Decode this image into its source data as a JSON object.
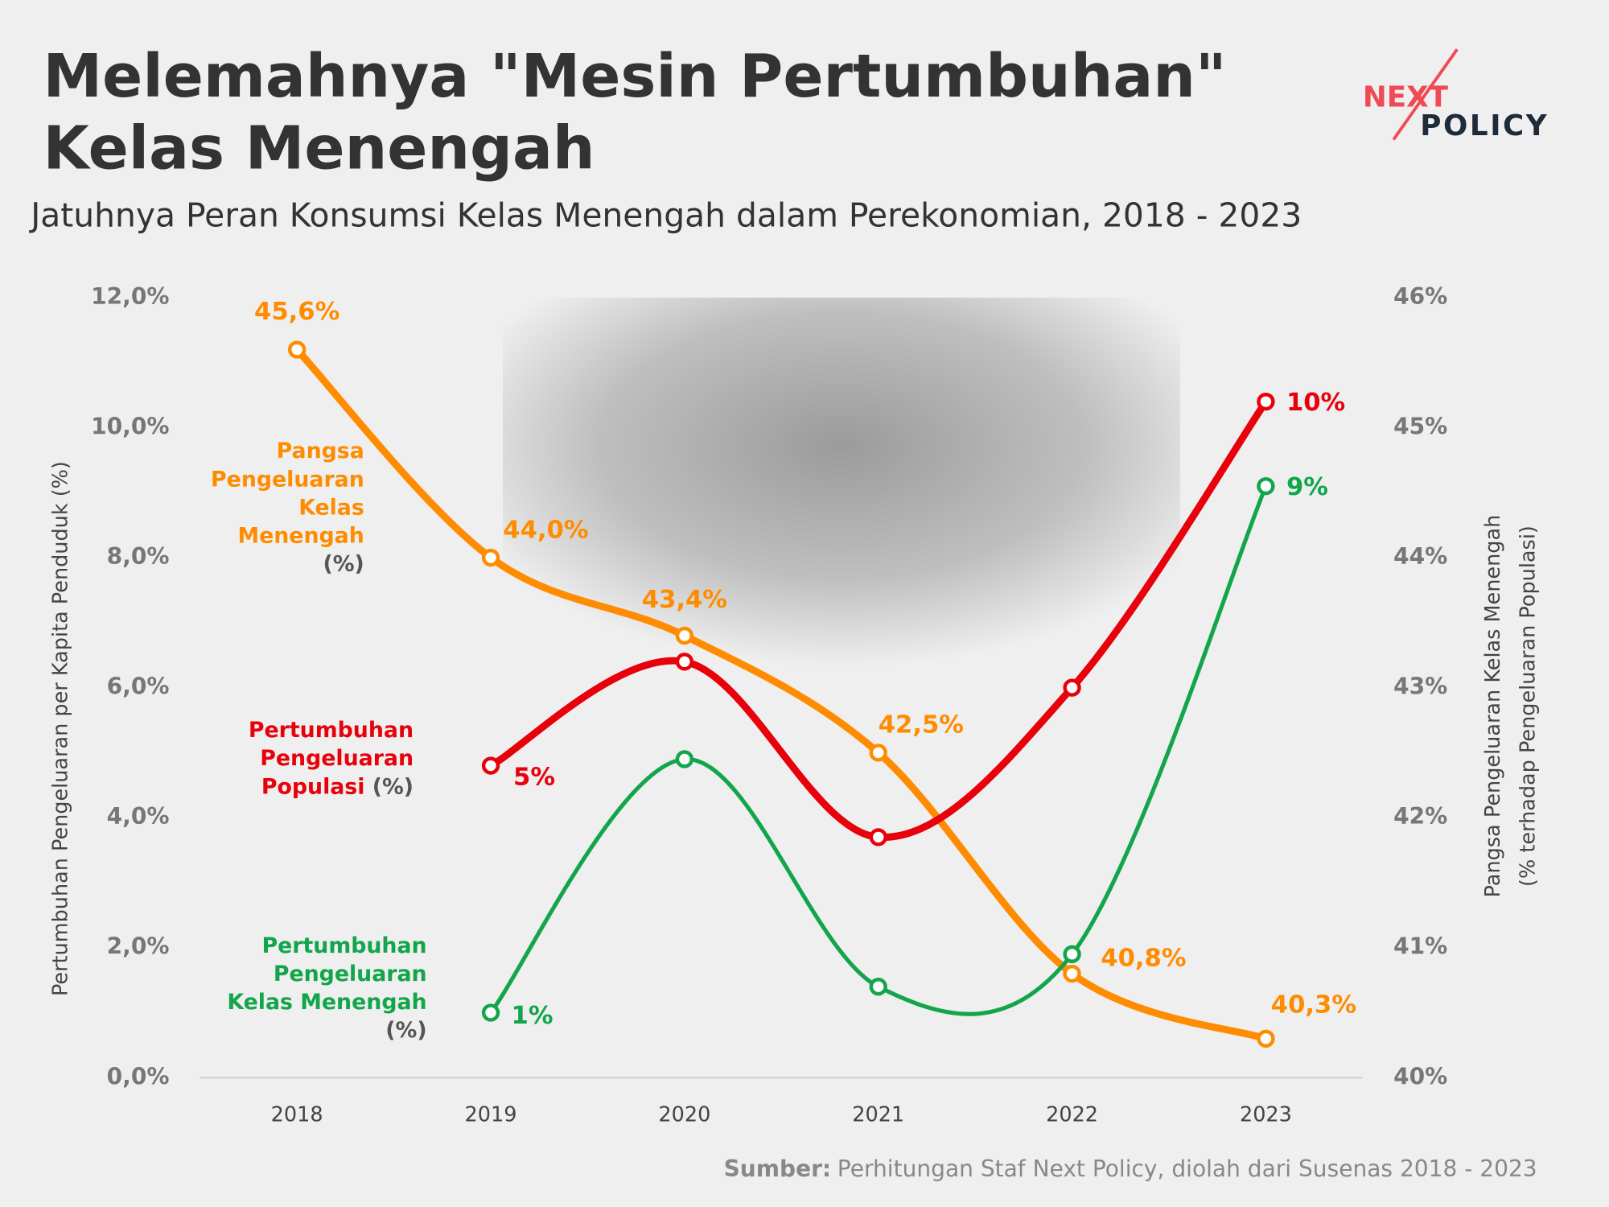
{
  "chart_data": {
    "type": "line",
    "title": [
      "Melemahnya \"Mesin Pertumbuhan\"",
      "Kelas Menengah"
    ],
    "subtitle": "Jatuhnya Peran Konsumsi Kelas Menengah dalam Perekonomian, 2018 - 2023",
    "logo": [
      "NEXT",
      "POLICY"
    ],
    "ylabel": "Pertumbuhan Pengeluaran per Kapita Penduduk (%)",
    "y2label": [
      "Pangsa Pengeluaran Kelas Menengah",
      "(% terhadap Pengeluaran Populasi)"
    ],
    "categories": [
      "2018",
      "2019",
      "2020",
      "2021",
      "2022",
      "2023"
    ],
    "ylim": [
      0,
      12
    ],
    "yticks": [
      {
        "value": 0,
        "label": "0,0%"
      },
      {
        "value": 2,
        "label": "2,0%"
      },
      {
        "value": 4,
        "label": "4,0%"
      },
      {
        "value": 6,
        "label": "6,0%"
      },
      {
        "value": 8,
        "label": "8,0%"
      },
      {
        "value": 10,
        "label": "10,0%"
      },
      {
        "value": 12,
        "label": "12,0%"
      }
    ],
    "y2lim": [
      40,
      46
    ],
    "y2ticks": [
      {
        "value": 40,
        "label": "40%"
      },
      {
        "value": 41,
        "label": "41%"
      },
      {
        "value": 42,
        "label": "42%"
      },
      {
        "value": 43,
        "label": "43%"
      },
      {
        "value": 44,
        "label": "44%"
      },
      {
        "value": 45,
        "label": "45%"
      },
      {
        "value": 46,
        "label": "46%"
      }
    ],
    "grid": false,
    "series": [
      {
        "name": "Pangsa Pengeluaran Kelas Menengah (%)",
        "color": "#ff8c00",
        "axis": "y2",
        "values": [
          45.6,
          44.0,
          43.4,
          42.5,
          40.8,
          40.3
        ],
        "value_labels": [
          "45,6%",
          "44,0%",
          "43,4%",
          "42,5%",
          "40,8%",
          "40,3%"
        ]
      },
      {
        "name": "Pertumbuhan Pengeluaran Populasi (%)",
        "color": "#e8000b",
        "values": [
          null,
          4.8,
          6.4,
          3.7,
          6.0,
          10.4
        ],
        "value_labels": [
          null,
          "5%",
          null,
          null,
          null,
          "10%"
        ]
      },
      {
        "name": "Pertumbuhan Pengeluaran Kelas Menengah (%)",
        "color": "#12a54a",
        "values": [
          null,
          1.0,
          4.9,
          1.4,
          1.9,
          9.1
        ],
        "value_labels": [
          null,
          "1%",
          null,
          null,
          null,
          "9%"
        ]
      }
    ],
    "source_label": "Sumber:",
    "source": "Perhitungan Staf Next Policy, diolah dari Susenas 2018 - 2023"
  }
}
